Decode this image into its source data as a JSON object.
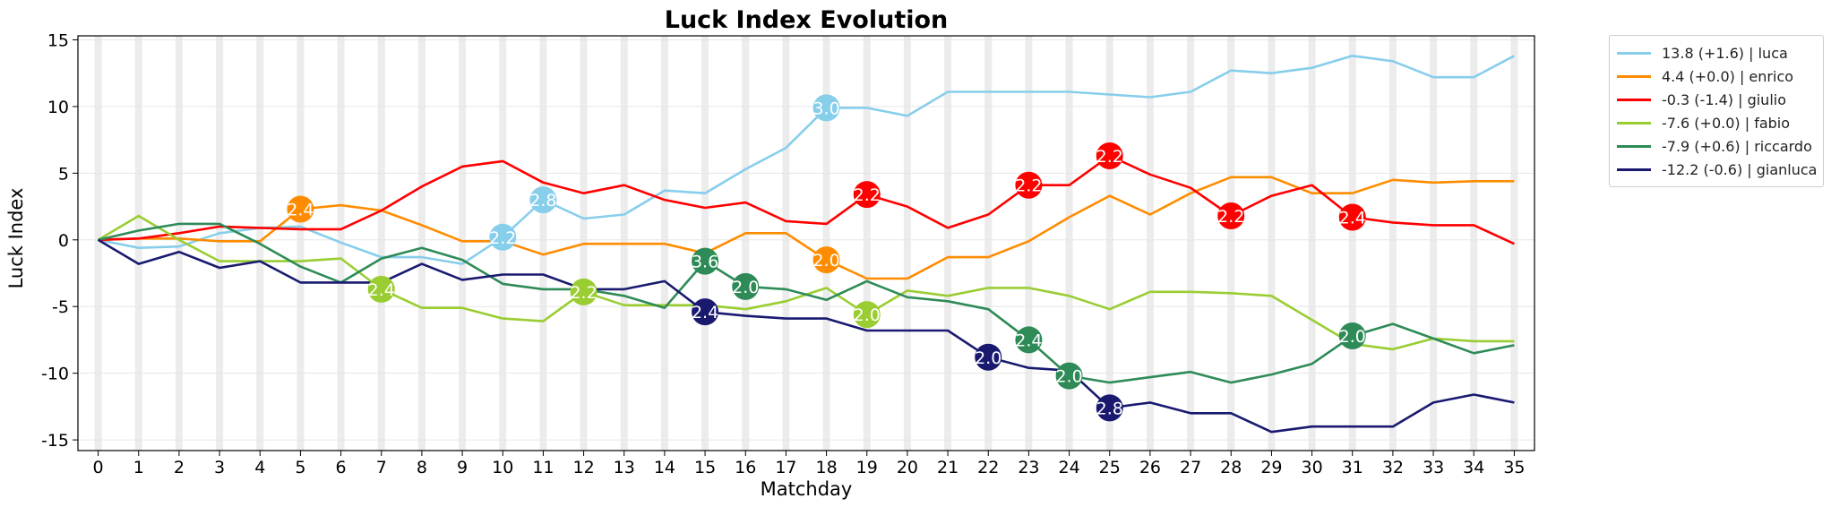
{
  "chart_data": {
    "type": "line",
    "title": "Luck Index Evolution",
    "xlabel": "Matchday",
    "ylabel": "Luck Index",
    "x": [
      0,
      1,
      2,
      3,
      4,
      5,
      6,
      7,
      8,
      9,
      10,
      11,
      12,
      13,
      14,
      15,
      16,
      17,
      18,
      19,
      20,
      21,
      22,
      23,
      24,
      25,
      26,
      27,
      28,
      29,
      30,
      31,
      32,
      33,
      34,
      35
    ],
    "xlim": [
      -0.5,
      35.5
    ],
    "ylim": [
      -15.8,
      15.3
    ],
    "yticks": [
      -15,
      -10,
      -5,
      0,
      5,
      10,
      15
    ],
    "grid": true,
    "legend_position": "outside-right",
    "series": [
      {
        "name": "luca",
        "legend": "13.8 (+1.6) | luca",
        "color": "#87ceeb",
        "values": [
          0,
          -0.6,
          -0.5,
          0.5,
          0.9,
          1.0,
          -0.2,
          -1.3,
          -1.3,
          -1.8,
          0.2,
          3.0,
          1.6,
          1.9,
          3.7,
          3.5,
          5.3,
          6.9,
          9.9,
          9.9,
          9.3,
          11.1,
          11.1,
          11.1,
          11.1,
          10.9,
          10.7,
          11.1,
          12.7,
          12.5,
          12.9,
          13.8,
          13.4,
          12.2,
          12.2,
          13.8
        ],
        "markers": [
          {
            "x": 10,
            "y": 0.2,
            "label": "2.2"
          },
          {
            "x": 11,
            "y": 3.0,
            "label": "2.8"
          },
          {
            "x": 18,
            "y": 9.9,
            "label": "3.0"
          }
        ]
      },
      {
        "name": "enrico",
        "legend": "4.4 (+0.0) | enrico",
        "color": "#ff8c00",
        "values": [
          0,
          0.1,
          0.1,
          -0.1,
          -0.1,
          2.3,
          2.6,
          2.2,
          1.1,
          -0.1,
          -0.1,
          -1.1,
          -0.3,
          -0.3,
          -0.3,
          -1.0,
          0.5,
          0.5,
          -1.5,
          -2.9,
          -2.9,
          -1.3,
          -1.3,
          -0.1,
          1.7,
          3.3,
          1.9,
          3.5,
          4.7,
          4.7,
          3.5,
          3.5,
          4.5,
          4.3,
          4.4,
          4.4
        ],
        "markers": [
          {
            "x": 5,
            "y": 2.3,
            "label": "2.4"
          },
          {
            "x": 18,
            "y": -1.5,
            "label": "2.0"
          }
        ]
      },
      {
        "name": "giulio",
        "legend": "-0.3 (-1.4) | giulio",
        "color": "#ff0000",
        "values": [
          0,
          0.1,
          0.5,
          1.0,
          0.9,
          0.8,
          0.8,
          2.2,
          4.0,
          5.5,
          5.9,
          4.3,
          3.5,
          4.1,
          3.0,
          2.4,
          2.8,
          1.4,
          1.2,
          3.4,
          2.5,
          0.9,
          1.9,
          4.1,
          4.1,
          6.3,
          4.9,
          3.9,
          1.8,
          3.3,
          4.1,
          1.7,
          1.3,
          1.1,
          1.1,
          -0.3
        ],
        "markers": [
          {
            "x": 19,
            "y": 3.4,
            "label": "2.2"
          },
          {
            "x": 23,
            "y": 4.1,
            "label": "2.2"
          },
          {
            "x": 25,
            "y": 6.3,
            "label": "2.2"
          },
          {
            "x": 28,
            "y": 1.8,
            "label": "2.2"
          },
          {
            "x": 31,
            "y": 1.7,
            "label": "2.4"
          }
        ]
      },
      {
        "name": "fabio",
        "legend": "-7.6 (+0.0) | fabio",
        "color": "#9acd32",
        "values": [
          0,
          1.8,
          0,
          -1.6,
          -1.6,
          -1.6,
          -1.4,
          -3.7,
          -5.1,
          -5.1,
          -5.9,
          -6.1,
          -3.9,
          -4.9,
          -4.9,
          -4.9,
          -5.2,
          -4.6,
          -3.6,
          -5.6,
          -3.8,
          -4.2,
          -3.6,
          -3.6,
          -4.2,
          -5.2,
          -3.9,
          -3.9,
          -4.0,
          -4.2,
          -6.0,
          -7.8,
          -8.2,
          -7.4,
          -7.6,
          -7.6
        ],
        "markers": [
          {
            "x": 7,
            "y": -3.7,
            "label": "2.4"
          },
          {
            "x": 12,
            "y": -3.9,
            "label": "2.2"
          },
          {
            "x": 19,
            "y": -5.6,
            "label": "2.0"
          }
        ]
      },
      {
        "name": "riccardo",
        "legend": "-7.9 (+0.6) | riccardo",
        "color": "#2e8b57",
        "values": [
          0,
          0.7,
          1.2,
          1.2,
          -0.3,
          -2.0,
          -3.2,
          -1.4,
          -0.6,
          -1.5,
          -3.3,
          -3.7,
          -3.7,
          -4.2,
          -5.1,
          -1.6,
          -3.5,
          -3.7,
          -4.5,
          -3.1,
          -4.3,
          -4.6,
          -5.2,
          -7.5,
          -10.2,
          -10.7,
          -10.3,
          -9.9,
          -10.7,
          -10.1,
          -9.3,
          -7.2,
          -6.3,
          -7.4,
          -8.5,
          -7.9
        ],
        "markers": [
          {
            "x": 15,
            "y": -1.6,
            "label": "3.6"
          },
          {
            "x": 16,
            "y": -3.5,
            "label": "2.0"
          },
          {
            "x": 23,
            "y": -7.5,
            "label": "2.4"
          },
          {
            "x": 24,
            "y": -10.2,
            "label": "2.0"
          },
          {
            "x": 31,
            "y": -7.2,
            "label": "2.0"
          }
        ]
      },
      {
        "name": "gianluca",
        "legend": "-12.2 (-0.6) | gianluca",
        "color": "#191970",
        "values": [
          0,
          -1.8,
          -0.9,
          -2.1,
          -1.6,
          -3.2,
          -3.2,
          -3.2,
          -1.8,
          -3.0,
          -2.6,
          -2.6,
          -3.7,
          -3.7,
          -3.1,
          -5.4,
          -5.7,
          -5.9,
          -5.9,
          -6.8,
          -6.8,
          -6.8,
          -8.8,
          -9.6,
          -9.8,
          -12.6,
          -12.2,
          -13.0,
          -13.0,
          -14.4,
          -14.0,
          -14.0,
          -14.0,
          -12.2,
          -11.6,
          -12.2
        ],
        "markers": [
          {
            "x": 15,
            "y": -5.4,
            "label": "2.4"
          },
          {
            "x": 22,
            "y": -8.8,
            "label": "2.0"
          },
          {
            "x": 25,
            "y": -12.6,
            "label": "2.8"
          }
        ]
      }
    ]
  }
}
